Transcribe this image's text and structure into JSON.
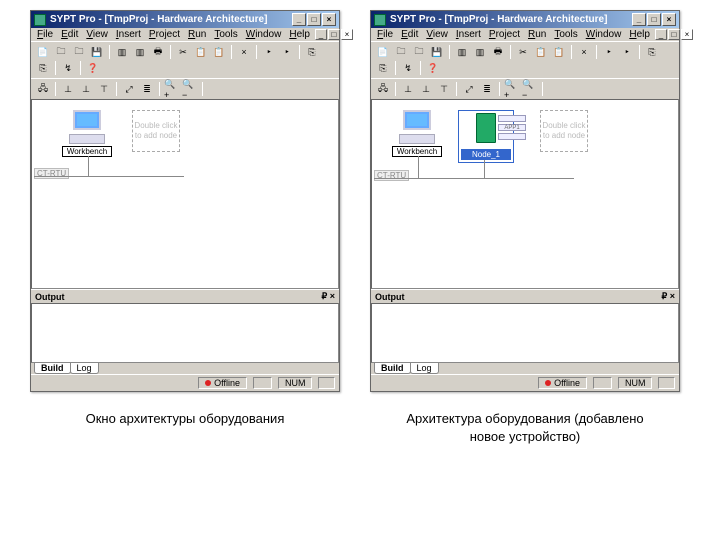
{
  "app": {
    "title": "SYPT Pro - [TmpProj - Hardware Architecture]"
  },
  "menu": {
    "file": "File",
    "edit": "Edit",
    "view": "View",
    "insert": "Insert",
    "project": "Project",
    "run": "Run",
    "tools": "Tools",
    "window": "Window",
    "help": "Help"
  },
  "winbtns": {
    "min": "_",
    "max": "□",
    "close": "×",
    "childmin": "_",
    "childmax": "□",
    "childclose": "×"
  },
  "toolbar_icons": {
    "r1": [
      "📄",
      "🗀",
      "🗀",
      "💾",
      "·",
      "▥",
      "▥",
      "🖶",
      "·",
      "✂",
      "📋",
      "📋",
      "·",
      "×",
      "·",
      "‣",
      "‣",
      "·",
      "⎘",
      "⎘",
      "·",
      "↯",
      "·",
      "❓"
    ],
    "r2": [
      "🖧",
      "·",
      "⊥",
      "⊥",
      "⊤",
      "·",
      "⤢",
      "≣",
      "·",
      "🔍+",
      "🔍−",
      "·"
    ]
  },
  "hw": {
    "bus_label": "CT-RTU",
    "workbench_label": "Workbench",
    "placeholder_text": "Double click to add node",
    "node1_label": "Node_1",
    "app1_label": "APP1"
  },
  "output": {
    "header": "Output",
    "pinclose": "₽  ×",
    "tab_build": "Build",
    "tab_log": "Log"
  },
  "status": {
    "offline": "Offline",
    "num": "NUM"
  },
  "captions": {
    "left": "Окно архитектуры оборудования",
    "right": "Архитектура оборудования (добавлено новое устройство)"
  },
  "colors": {
    "titlebar_start": "#0a246a",
    "titlebar_end": "#a6caf0",
    "face": "#d4d0c8",
    "drive": "#2a6a3a"
  }
}
